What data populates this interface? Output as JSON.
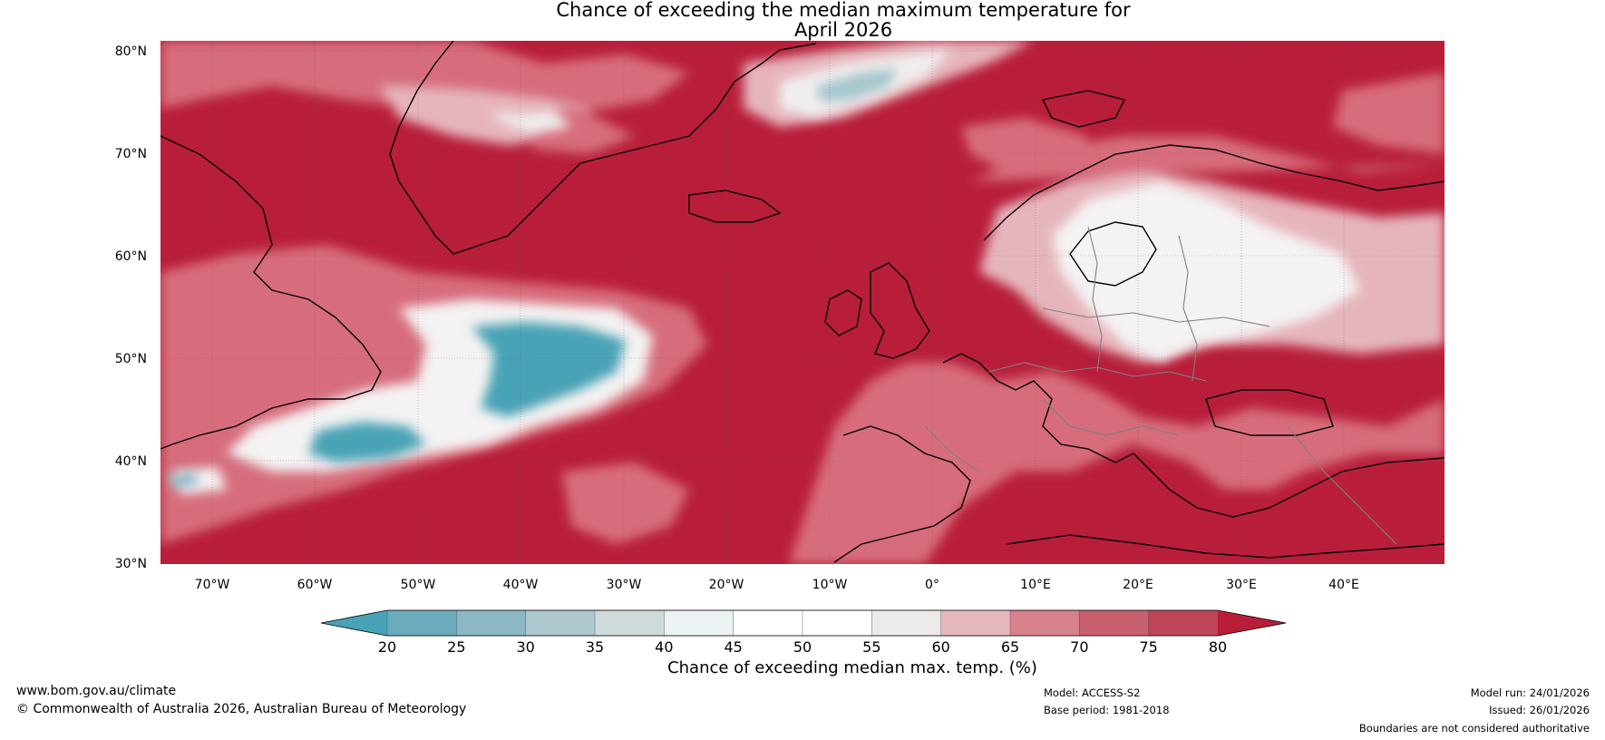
{
  "title": {
    "line1": "Chance of exceeding the median maximum temperature for",
    "line2": "April 2026"
  },
  "map": {
    "lat_labels": [
      "80°N",
      "70°N",
      "60°N",
      "50°N",
      "40°N",
      "30°N"
    ],
    "lon_labels": [
      "70°W",
      "60°W",
      "50°W",
      "40°W",
      "30°W",
      "20°W",
      "10°W",
      "0°",
      "10°E",
      "20°E",
      "30°E",
      "40°E"
    ],
    "colors": {
      "very_high": "#b81e3a",
      "high": "#d76d7b",
      "moderate": "#e6b5bc",
      "neutral": "#f2f0f0",
      "low": "#48a3b6",
      "land_outline": "#000000",
      "border": "#808080"
    }
  },
  "colorbar": {
    "ticks": [
      "20",
      "25",
      "30",
      "35",
      "40",
      "45",
      "50",
      "55",
      "60",
      "65",
      "70",
      "75",
      "80"
    ],
    "colors": [
      "#48a3b6",
      "#6aacbb",
      "#8bb8c4",
      "#adc9cf",
      "#cfdadd",
      "#ecf3f5",
      "#ffffff",
      "#ffffff",
      "#edebea",
      "#e4b8bd",
      "#d8828c",
      "#c8606d",
      "#be4457",
      "#b81e3a"
    ],
    "label": "Chance of exceeding median max. temp. (%)"
  },
  "footer": {
    "website": "www.bom.gov.au/climate",
    "copyright": "© Commonwealth of Australia 2026, Australian Bureau of Meteorology",
    "model": "Model: ACCESS-S2",
    "base_period": "Base period: 1981-2018",
    "model_run": "Model run: 24/01/2026",
    "issued": "Issued: 26/01/2026",
    "disclaimer": "Boundaries are not considered authoritative"
  }
}
